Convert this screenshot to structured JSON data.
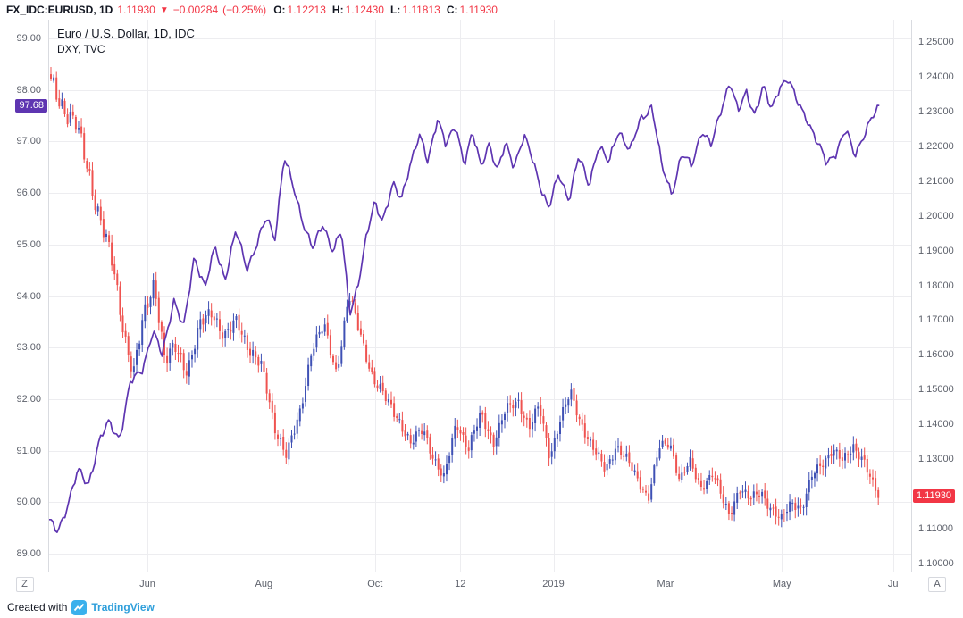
{
  "top_bar": {
    "symbol_title": "FX_IDC:EURUSD, 1D",
    "last_price": "1.11930",
    "direction_arrow": "▼",
    "change": "−0.00284",
    "change_percent": "(−0.25%)",
    "open_label": "O:",
    "open_value": "1.12213",
    "high_label": "H:",
    "high_value": "1.12430",
    "low_label": "L:",
    "low_value": "1.11813",
    "close_label": "C:",
    "close_value": "1.11930"
  },
  "legend": {
    "line1": "Euro / U.S. Dollar, 1D, IDC",
    "line2": "DXY, TVC"
  },
  "left_axis": {
    "ticks": [
      "99.00",
      "98.00",
      "97.00",
      "96.00",
      "95.00",
      "94.00",
      "93.00",
      "92.00",
      "91.00",
      "90.00",
      "89.00"
    ],
    "badge": {
      "value": "97.68"
    }
  },
  "right_axis": {
    "ticks": [
      "1.25000",
      "1.24000",
      "1.23000",
      "1.22000",
      "1.21000",
      "1.20000",
      "1.19000",
      "1.18000",
      "1.17000",
      "1.16000",
      "1.15000",
      "1.14000",
      "1.13000",
      "1.12000",
      "1.11000",
      "1.10000"
    ],
    "badge": {
      "value": "1.11930"
    }
  },
  "time_axis": {
    "left_button": "Z",
    "right_button": "A",
    "ticks": [
      {
        "label": "Jun",
        "t": 0.114
      },
      {
        "label": "Aug",
        "t": 0.249
      },
      {
        "label": "Oct",
        "t": 0.378
      },
      {
        "label": "12",
        "t": 0.477
      },
      {
        "label": "2019",
        "t": 0.585,
        "year": true
      },
      {
        "label": "Mar",
        "t": 0.715
      },
      {
        "label": "May",
        "t": 0.85
      },
      {
        "label": "Ju",
        "t": 0.979
      }
    ]
  },
  "footer": {
    "created_with": "Created with",
    "brand": "TradingView"
  },
  "colors": {
    "up": "#3f51b5",
    "down": "#ef5350",
    "accent_red": "#f23645",
    "dxy_line": "#5e35b1",
    "grid": "#ededf0",
    "axis_text": "#5d616b",
    "badge_left_bg": "#5e35b1",
    "badge_right_bg": "#f23645",
    "brand_blue": "#2f9fdb"
  },
  "chart_data": {
    "type": "mixed",
    "title": "Euro / U.S. Dollar, 1D, IDC with DXY, TVC overlay",
    "x_tick_labels": [
      "Jun",
      "Aug",
      "Oct",
      "12",
      "2019",
      "Mar",
      "May",
      "Ju"
    ],
    "grid": true,
    "legend_position": "top-left",
    "series": [
      {
        "name": "EURUSD",
        "type": "candlestick",
        "axis": "right",
        "ylim": [
          1.1,
          1.25
        ],
        "last_close": 1.1193,
        "ohlc_today": {
          "o": 1.12213,
          "h": 1.1243,
          "l": 1.11813,
          "c": 1.1193
        },
        "close_anchors": [
          [
            0.0,
            1.2375
          ],
          [
            0.015,
            1.232
          ],
          [
            0.03,
            1.226
          ],
          [
            0.045,
            1.213
          ],
          [
            0.06,
            1.199
          ],
          [
            0.075,
            1.185
          ],
          [
            0.09,
            1.165
          ],
          [
            0.1,
            1.1545
          ],
          [
            0.112,
            1.1705
          ],
          [
            0.125,
            1.182
          ],
          [
            0.138,
            1.1575
          ],
          [
            0.15,
            1.162
          ],
          [
            0.165,
            1.156
          ],
          [
            0.18,
            1.168
          ],
          [
            0.195,
            1.173
          ],
          [
            0.21,
            1.165
          ],
          [
            0.225,
            1.1695
          ],
          [
            0.24,
            1.162
          ],
          [
            0.255,
            1.156
          ],
          [
            0.27,
            1.14
          ],
          [
            0.285,
            1.131
          ],
          [
            0.3,
            1.142
          ],
          [
            0.315,
            1.162
          ],
          [
            0.33,
            1.168
          ],
          [
            0.345,
            1.155
          ],
          [
            0.36,
            1.177
          ],
          [
            0.375,
            1.165
          ],
          [
            0.39,
            1.153
          ],
          [
            0.405,
            1.147
          ],
          [
            0.42,
            1.142
          ],
          [
            0.435,
            1.134
          ],
          [
            0.45,
            1.139
          ],
          [
            0.465,
            1.129
          ],
          [
            0.475,
            1.124
          ],
          [
            0.49,
            1.141
          ],
          [
            0.505,
            1.133
          ],
          [
            0.52,
            1.143
          ],
          [
            0.535,
            1.135
          ],
          [
            0.55,
            1.144
          ],
          [
            0.565,
            1.147
          ],
          [
            0.578,
            1.139
          ],
          [
            0.59,
            1.145
          ],
          [
            0.603,
            1.131
          ],
          [
            0.615,
            1.141
          ],
          [
            0.628,
            1.149
          ],
          [
            0.64,
            1.141
          ],
          [
            0.655,
            1.133
          ],
          [
            0.67,
            1.127
          ],
          [
            0.683,
            1.134
          ],
          [
            0.695,
            1.13
          ],
          [
            0.71,
            1.124
          ],
          [
            0.722,
            1.119
          ],
          [
            0.735,
            1.133
          ],
          [
            0.748,
            1.135
          ],
          [
            0.76,
            1.124
          ],
          [
            0.772,
            1.129
          ],
          [
            0.785,
            1.122
          ],
          [
            0.8,
            1.126
          ],
          [
            0.812,
            1.118
          ],
          [
            0.82,
            1.114
          ],
          [
            0.832,
            1.122
          ],
          [
            0.845,
            1.118
          ],
          [
            0.858,
            1.121
          ],
          [
            0.87,
            1.116
          ],
          [
            0.882,
            1.112
          ],
          [
            0.895,
            1.118
          ],
          [
            0.908,
            1.116
          ],
          [
            0.92,
            1.125
          ],
          [
            0.932,
            1.129
          ],
          [
            0.945,
            1.133
          ],
          [
            0.957,
            1.129
          ],
          [
            0.97,
            1.134
          ],
          [
            0.982,
            1.13
          ],
          [
            0.992,
            1.123
          ],
          [
            1.0,
            1.1193
          ]
        ]
      },
      {
        "name": "DXY",
        "type": "line",
        "axis": "left",
        "ylim": [
          89,
          99
        ],
        "last": 97.68,
        "anchors": [
          [
            0.0,
            89.62
          ],
          [
            0.01,
            89.42
          ],
          [
            0.022,
            89.95
          ],
          [
            0.035,
            90.6
          ],
          [
            0.047,
            90.35
          ],
          [
            0.06,
            91.15
          ],
          [
            0.072,
            91.55
          ],
          [
            0.085,
            91.25
          ],
          [
            0.098,
            92.3
          ],
          [
            0.112,
            92.6
          ],
          [
            0.125,
            93.3
          ],
          [
            0.136,
            92.85
          ],
          [
            0.15,
            93.95
          ],
          [
            0.162,
            93.35
          ],
          [
            0.175,
            94.8
          ],
          [
            0.188,
            94.15
          ],
          [
            0.2,
            94.95
          ],
          [
            0.212,
            94.35
          ],
          [
            0.225,
            95.25
          ],
          [
            0.238,
            94.55
          ],
          [
            0.25,
            95.0
          ],
          [
            0.262,
            95.5
          ],
          [
            0.272,
            95.15
          ],
          [
            0.283,
            96.7
          ],
          [
            0.295,
            96.05
          ],
          [
            0.307,
            95.4
          ],
          [
            0.318,
            94.9
          ],
          [
            0.33,
            95.4
          ],
          [
            0.342,
            94.9
          ],
          [
            0.352,
            95.25
          ],
          [
            0.362,
            93.65
          ],
          [
            0.372,
            94.25
          ],
          [
            0.382,
            95.1
          ],
          [
            0.392,
            95.8
          ],
          [
            0.402,
            95.5
          ],
          [
            0.414,
            96.15
          ],
          [
            0.424,
            95.85
          ],
          [
            0.434,
            96.55
          ],
          [
            0.446,
            97.1
          ],
          [
            0.456,
            96.6
          ],
          [
            0.468,
            97.5
          ],
          [
            0.478,
            96.9
          ],
          [
            0.49,
            97.3
          ],
          [
            0.5,
            96.6
          ],
          [
            0.51,
            97.15
          ],
          [
            0.52,
            96.5
          ],
          [
            0.53,
            97.0
          ],
          [
            0.54,
            96.4
          ],
          [
            0.55,
            96.95
          ],
          [
            0.56,
            96.55
          ],
          [
            0.572,
            97.1
          ],
          [
            0.582,
            96.65
          ],
          [
            0.592,
            96.15
          ],
          [
            0.602,
            95.7
          ],
          [
            0.614,
            96.35
          ],
          [
            0.626,
            95.9
          ],
          [
            0.638,
            96.7
          ],
          [
            0.65,
            96.15
          ],
          [
            0.662,
            96.95
          ],
          [
            0.674,
            96.55
          ],
          [
            0.686,
            97.25
          ],
          [
            0.7,
            96.8
          ],
          [
            0.713,
            97.45
          ],
          [
            0.726,
            97.7
          ],
          [
            0.738,
            96.5
          ],
          [
            0.75,
            96.0
          ],
          [
            0.762,
            96.75
          ],
          [
            0.774,
            96.5
          ],
          [
            0.786,
            97.25
          ],
          [
            0.798,
            96.9
          ],
          [
            0.81,
            97.65
          ],
          [
            0.82,
            98.2
          ],
          [
            0.83,
            97.55
          ],
          [
            0.84,
            97.95
          ],
          [
            0.85,
            97.55
          ],
          [
            0.86,
            98.05
          ],
          [
            0.87,
            97.6
          ],
          [
            0.88,
            98.1
          ],
          [
            0.89,
            98.2
          ],
          [
            0.9,
            97.8
          ],
          [
            0.912,
            97.5
          ],
          [
            0.924,
            97.0
          ],
          [
            0.936,
            96.6
          ],
          [
            0.948,
            96.8
          ],
          [
            0.96,
            97.2
          ],
          [
            0.97,
            96.75
          ],
          [
            0.982,
            97.15
          ],
          [
            0.992,
            97.45
          ],
          [
            1.0,
            97.68
          ]
        ]
      }
    ]
  }
}
